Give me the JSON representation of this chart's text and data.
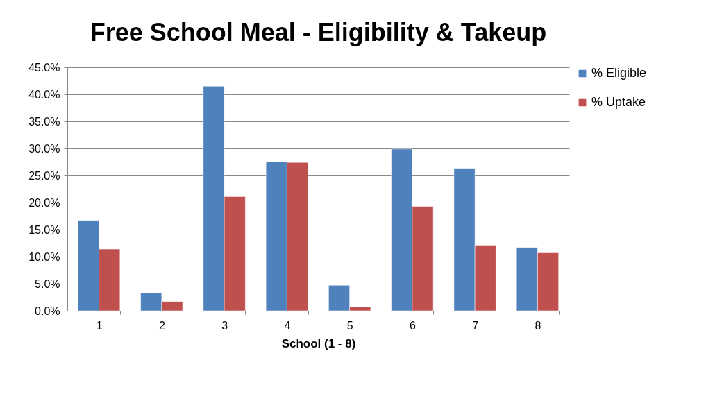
{
  "chart_data": {
    "type": "bar",
    "title": "Free School Meal - Eligibility & Takeup",
    "xlabel": "School (1 - 8)",
    "categories": [
      "1",
      "2",
      "3",
      "4",
      "5",
      "6",
      "7",
      "8"
    ],
    "series": [
      {
        "name": "% Eligible",
        "color": "#4f81bd",
        "values": [
          16.7,
          3.3,
          41.5,
          27.5,
          4.7,
          29.9,
          26.3,
          11.7
        ]
      },
      {
        "name": "% Uptake",
        "color": "#c0504d",
        "values": [
          11.4,
          1.7,
          21.1,
          27.4,
          0.7,
          19.3,
          12.1,
          10.7
        ]
      }
    ],
    "ylim": [
      0,
      45
    ],
    "yticks": [
      {
        "value": 0,
        "label": "0.0%"
      },
      {
        "value": 5,
        "label": "5.0%"
      },
      {
        "value": 10,
        "label": "10.0%"
      },
      {
        "value": 15,
        "label": "15.0%"
      },
      {
        "value": 20,
        "label": "20.0%"
      },
      {
        "value": 25,
        "label": "25.0%"
      },
      {
        "value": 30,
        "label": "30.0%"
      },
      {
        "value": 35,
        "label": "35.0%"
      },
      {
        "value": 40,
        "label": "40.0%"
      },
      {
        "value": 45,
        "label": "45.0%"
      }
    ],
    "grid": "y",
    "legend": "right"
  }
}
